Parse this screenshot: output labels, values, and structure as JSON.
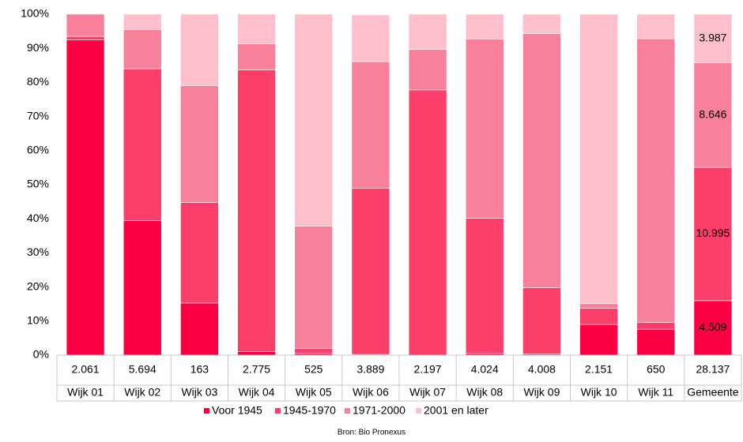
{
  "chart_data": {
    "type": "stacked_bar_100",
    "categories": [
      "Wijk 01",
      "Wijk 02",
      "Wijk 03",
      "Wijk 04",
      "Wijk 05",
      "Wijk 06",
      "Wijk 07",
      "Wijk 08",
      "Wijk 09",
      "Wijk 10",
      "Wijk 11",
      "Gemeente"
    ],
    "totals": [
      {
        "value": 2061,
        "label": "2.061"
      },
      {
        "value": 5694,
        "label": "5.694"
      },
      {
        "value": 163,
        "label": "163"
      },
      {
        "value": 2775,
        "label": "2.775"
      },
      {
        "value": 525,
        "label": "525"
      },
      {
        "value": 3889,
        "label": "3.889"
      },
      {
        "value": 2197,
        "label": "2.197"
      },
      {
        "value": 4024,
        "label": "4.024"
      },
      {
        "value": 4008,
        "label": "4.008"
      },
      {
        "value": 2151,
        "label": "2.151"
      },
      {
        "value": 650,
        "label": "650"
      },
      {
        "value": 28137,
        "label": "28.137"
      }
    ],
    "series": [
      {
        "name": "Voor 1945",
        "color": "#fd0044",
        "values": [
          92.5,
          39.5,
          15.3,
          1.0,
          0.5,
          0.2,
          0,
          0.5,
          0.3,
          9.0,
          7.6,
          16.0
        ]
      },
      {
        "name": "1945-1970",
        "color": "#fb3f6a",
        "values": [
          1.0,
          44.5,
          29.5,
          82.7,
          1.5,
          48.8,
          77.8,
          39.7,
          19.5,
          4.8,
          2.0,
          39.1
        ]
      },
      {
        "name": "1971-2000",
        "color": "#f9809a",
        "values": [
          6.5,
          11.5,
          34.2,
          7.6,
          35.8,
          37.1,
          11.9,
          52.5,
          74.5,
          1.3,
          83.2,
          30.7
        ]
      },
      {
        "name": "2001 en later",
        "color": "#fdbfcc",
        "values": [
          0,
          4.5,
          21.0,
          8.7,
          62.2,
          13.7,
          10.3,
          7.3,
          5.7,
          84.9,
          7.2,
          14.2
        ]
      }
    ],
    "gemeente_counts": [
      {
        "value": 4509,
        "label": "4.509"
      },
      {
        "value": 10995,
        "label": "10.995"
      },
      {
        "value": 8646,
        "label": "8.646"
      },
      {
        "value": 3987,
        "label": "3.987"
      }
    ],
    "ylim": [
      0,
      100
    ],
    "yticks": [
      {
        "value": 0,
        "label": "0%"
      },
      {
        "value": 10,
        "label": "10%"
      },
      {
        "value": 20,
        "label": "20%"
      },
      {
        "value": 30,
        "label": "30%"
      },
      {
        "value": 40,
        "label": "40%"
      },
      {
        "value": 50,
        "label": "50%"
      },
      {
        "value": 60,
        "label": "60%"
      },
      {
        "value": 70,
        "label": "70%"
      },
      {
        "value": 80,
        "label": "80%"
      },
      {
        "value": 90,
        "label": "90%"
      },
      {
        "value": 100,
        "label": "100%"
      }
    ],
    "source": "Bron: Bio Pronexus"
  }
}
